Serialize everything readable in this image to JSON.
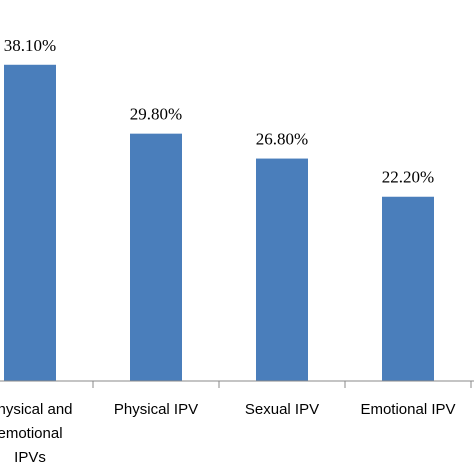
{
  "chart_data": {
    "type": "bar",
    "categories": [
      [
        "Physical and",
        "emotional",
        "IPVs"
      ],
      [
        "Physical IPV"
      ],
      [
        "Sexual IPV"
      ],
      [
        "Emotional IPV"
      ]
    ],
    "values": [
      38.1,
      29.8,
      26.8,
      22.2
    ],
    "value_labels": [
      "38.10%",
      "29.80%",
      "26.80%",
      "22.20%"
    ],
    "colors": {
      "bar": "#4a7ebb",
      "axis": "#888888"
    },
    "ylim": [
      0,
      40
    ],
    "grid": false,
    "legend": "none",
    "title": "",
    "xlabel": "",
    "ylabel": ""
  }
}
